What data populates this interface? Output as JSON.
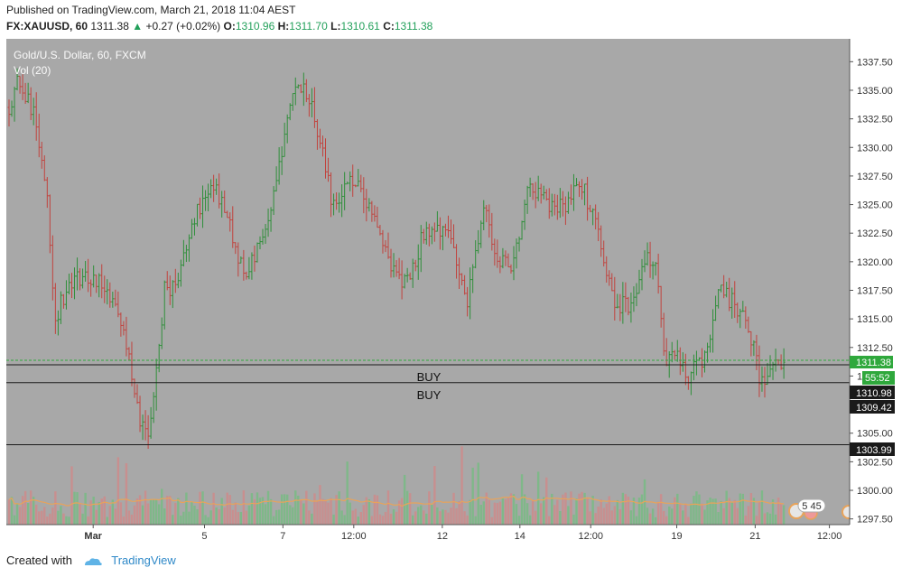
{
  "header": {
    "published": "Published on TradingView.com, March 21, 2018 11:04 AEST",
    "symbol": "FX:XAUUSD, 60",
    "last": "1311.38",
    "change": "+0.27 (+0.02%)",
    "o_label": "O:",
    "o_value": "1310.96",
    "h_label": "H:",
    "h_value": "1311.70",
    "l_label": "L:",
    "l_value": "1310.61",
    "c_label": "C:",
    "c_value": "1311.38"
  },
  "footer": {
    "created_with": "Created with",
    "brand": "TradingView"
  },
  "colors": {
    "background": "#a8a8a8",
    "up": "#2f8f3a",
    "down": "#c1433e",
    "volume_up": "#7fb889",
    "volume_down": "#c88f8f",
    "volume_ma": "#e8a35a",
    "current_price": "#2fa83c"
  },
  "chart_data": {
    "type": "ohlc",
    "legend": [
      "Gold/U.S. Dollar, 60, FXCM",
      "Vol (20)"
    ],
    "y_ticks": [
      1297.5,
      1300.0,
      1302.5,
      1305.0,
      1307.5,
      1310.0,
      1312.5,
      1315.0,
      1317.5,
      1320.0,
      1322.5,
      1325.0,
      1327.5,
      1330.0,
      1332.5,
      1335.0,
      1337.5
    ],
    "y_tick_labels": [
      "1297.50",
      "1300.00",
      "1302.50",
      "1305.00",
      "1307.50",
      "1310.00",
      "1312.50",
      "1315.00",
      "1317.50",
      "1320.00",
      "1322.50",
      "1325.00",
      "1327.50",
      "1330.00",
      "1332.50",
      "1335.00",
      "1337.50"
    ],
    "ylim": [
      1297.0,
      1339.5
    ],
    "x_labels": [
      "Mar",
      "5",
      "7",
      "12:00",
      "12",
      "14",
      "12:00",
      "19",
      "21",
      "12:00"
    ],
    "x_label_pos": [
      0.103,
      0.235,
      0.328,
      0.412,
      0.517,
      0.609,
      0.693,
      0.795,
      0.888,
      0.976
    ],
    "waypoints": [
      [
        0.0,
        1333.5
      ],
      [
        0.01,
        1336.0
      ],
      [
        0.03,
        1333.0
      ],
      [
        0.045,
        1326.0
      ],
      [
        0.055,
        1315.0
      ],
      [
        0.07,
        1318.0
      ],
      [
        0.09,
        1319.0
      ],
      [
        0.115,
        1318.0
      ],
      [
        0.14,
        1313.0
      ],
      [
        0.155,
        1306.0
      ],
      [
        0.168,
        1305.0
      ],
      [
        0.185,
        1317.5
      ],
      [
        0.2,
        1318.0
      ],
      [
        0.215,
        1323.0
      ],
      [
        0.24,
        1327.0
      ],
      [
        0.26,
        1324.0
      ],
      [
        0.28,
        1318.5
      ],
      [
        0.31,
        1324.0
      ],
      [
        0.325,
        1330.0
      ],
      [
        0.34,
        1336.0
      ],
      [
        0.355,
        1334.5
      ],
      [
        0.37,
        1331.0
      ],
      [
        0.385,
        1325.0
      ],
      [
        0.41,
        1327.5
      ],
      [
        0.435,
        1324.0
      ],
      [
        0.455,
        1319.0
      ],
      [
        0.475,
        1318.0
      ],
      [
        0.495,
        1323.0
      ],
      [
        0.525,
        1323.0
      ],
      [
        0.545,
        1316.0
      ],
      [
        0.565,
        1325.0
      ],
      [
        0.58,
        1320.5
      ],
      [
        0.6,
        1319.5
      ],
      [
        0.62,
        1327.0
      ],
      [
        0.64,
        1325.0
      ],
      [
        0.665,
        1325.0
      ],
      [
        0.68,
        1327.0
      ],
      [
        0.7,
        1323.0
      ],
      [
        0.72,
        1316.5
      ],
      [
        0.74,
        1316.0
      ],
      [
        0.755,
        1320.5
      ],
      [
        0.77,
        1320.0
      ],
      [
        0.78,
        1311.0
      ],
      [
        0.795,
        1312.0
      ],
      [
        0.81,
        1310.0
      ],
      [
        0.83,
        1312.0
      ],
      [
        0.845,
        1318.0
      ],
      [
        0.87,
        1315.5
      ],
      [
        0.885,
        1313.0
      ],
      [
        0.895,
        1309.0
      ],
      [
        0.91,
        1311.0
      ],
      [
        0.922,
        1311.38
      ]
    ],
    "current_price": 1311.38,
    "current_price_label": "1311.38",
    "countdown": "55:52",
    "horizontal_lines": [
      {
        "price": 1310.98,
        "label": "1310.98"
      },
      {
        "price": 1309.42,
        "label": "1309.42"
      },
      {
        "price": 1303.99,
        "label": "1303.99"
      }
    ],
    "annotations": [
      "BUY",
      "BUY"
    ],
    "event_badge": "5 45"
  }
}
